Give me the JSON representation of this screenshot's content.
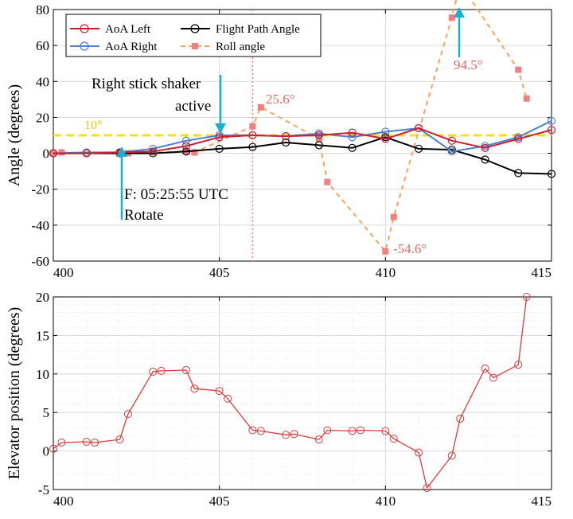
{
  "colors": {
    "aoa_left": "#cc1f2e",
    "aoa_right": "#4a7fd4",
    "flight_path": "#000000",
    "roll": "#f4a460",
    "roll_marker": "#f08080",
    "threshold": "#ffe000",
    "arrow": "#1aaed0",
    "elevator": "#d93b3b",
    "vline": "#f08080"
  },
  "chart_data": [
    {
      "type": "line",
      "ylabel": "Angle (degrees)",
      "xlim": [
        400,
        415
      ],
      "ylim": [
        -60,
        80
      ],
      "xticks": [
        "400",
        "405",
        "410",
        "415"
      ],
      "yticks": [
        "-60",
        "-40",
        "-20",
        "0",
        "20",
        "40",
        "60",
        "80"
      ],
      "legend_placement": "top-left",
      "series": [
        {
          "name": "AoA Left",
          "x": [
            400,
            401,
            402,
            403,
            404,
            405,
            406,
            407,
            408,
            409,
            410,
            411,
            412,
            413,
            414,
            415
          ],
          "y": [
            0,
            0,
            0.5,
            1,
            4,
            9,
            10,
            9.5,
            10,
            11.5,
            8,
            14,
            7,
            3,
            8,
            13
          ]
        },
        {
          "name": "AoA Right",
          "x": [
            400,
            401,
            402,
            403,
            404,
            405,
            406,
            407,
            408,
            409,
            410,
            411,
            412,
            413,
            414,
            415
          ],
          "y": [
            0,
            0.5,
            0.5,
            2.5,
            7,
            10,
            10,
            9.5,
            11,
            9,
            12,
            14,
            1,
            4,
            9,
            18
          ]
        },
        {
          "name": "Flight Path Angle",
          "x": [
            400,
            401,
            402,
            403,
            404,
            405,
            406,
            407,
            408,
            409,
            410,
            411,
            412,
            413,
            414,
            415
          ],
          "y": [
            0,
            0,
            0,
            0,
            1,
            2.5,
            3.5,
            6,
            4.5,
            3,
            9,
            2.5,
            2,
            -3.5,
            -11,
            -11.5
          ]
        },
        {
          "name": "Roll angle",
          "x": [
            400,
            400.25,
            402,
            402.25,
            404,
            404.25,
            406,
            406.25,
            408,
            408.25,
            410,
            410.25,
            412,
            412.25,
            414,
            414.25
          ],
          "y": [
            0,
            0.5,
            0,
            0,
            1,
            0.5,
            15,
            25.6,
            8,
            -16,
            -54.6,
            -35.5,
            75.5,
            94.5,
            46.5,
            30.5
          ]
        }
      ],
      "threshold": {
        "y": 10,
        "label": "10°"
      },
      "vline_x": 406,
      "annotations": {
        "stick_shaker_line1": "Right stick shaker",
        "stick_shaker_line2": "active",
        "rotate_line1": "F: 05:25:55 UTC",
        "rotate_line2": "Rotate",
        "peak_label": "25.6°",
        "min_label": "-54.6°",
        "max_label": "94.5°"
      }
    },
    {
      "type": "line",
      "ylabel": "Elevator position (degrees)",
      "xlim": [
        400,
        415
      ],
      "ylim": [
        -5,
        20
      ],
      "xticks": [
        "400",
        "405",
        "410",
        "415"
      ],
      "yticks": [
        "-5",
        "0",
        "5",
        "10",
        "15",
        "20"
      ],
      "series": [
        {
          "x": [
            400,
            400.25,
            401,
            401.25,
            402,
            402.25,
            403,
            403.25,
            404,
            404.25,
            405,
            405.25,
            406,
            406.25,
            407,
            407.25,
            408,
            408.25,
            409,
            409.25,
            410,
            410.25,
            411,
            411.25,
            412,
            412.25,
            413,
            413.25,
            414,
            414.25
          ],
          "y": [
            0.3,
            1.1,
            1.2,
            1.1,
            1.5,
            4.8,
            10.3,
            10.4,
            10.5,
            8.1,
            7.8,
            6.8,
            2.7,
            2.6,
            2.1,
            2.2,
            1.5,
            2.7,
            2.6,
            2.7,
            2.6,
            1.6,
            -0.2,
            -4.8,
            -0.6,
            4.2,
            10.7,
            9.5,
            11.2,
            20
          ]
        }
      ]
    }
  ]
}
